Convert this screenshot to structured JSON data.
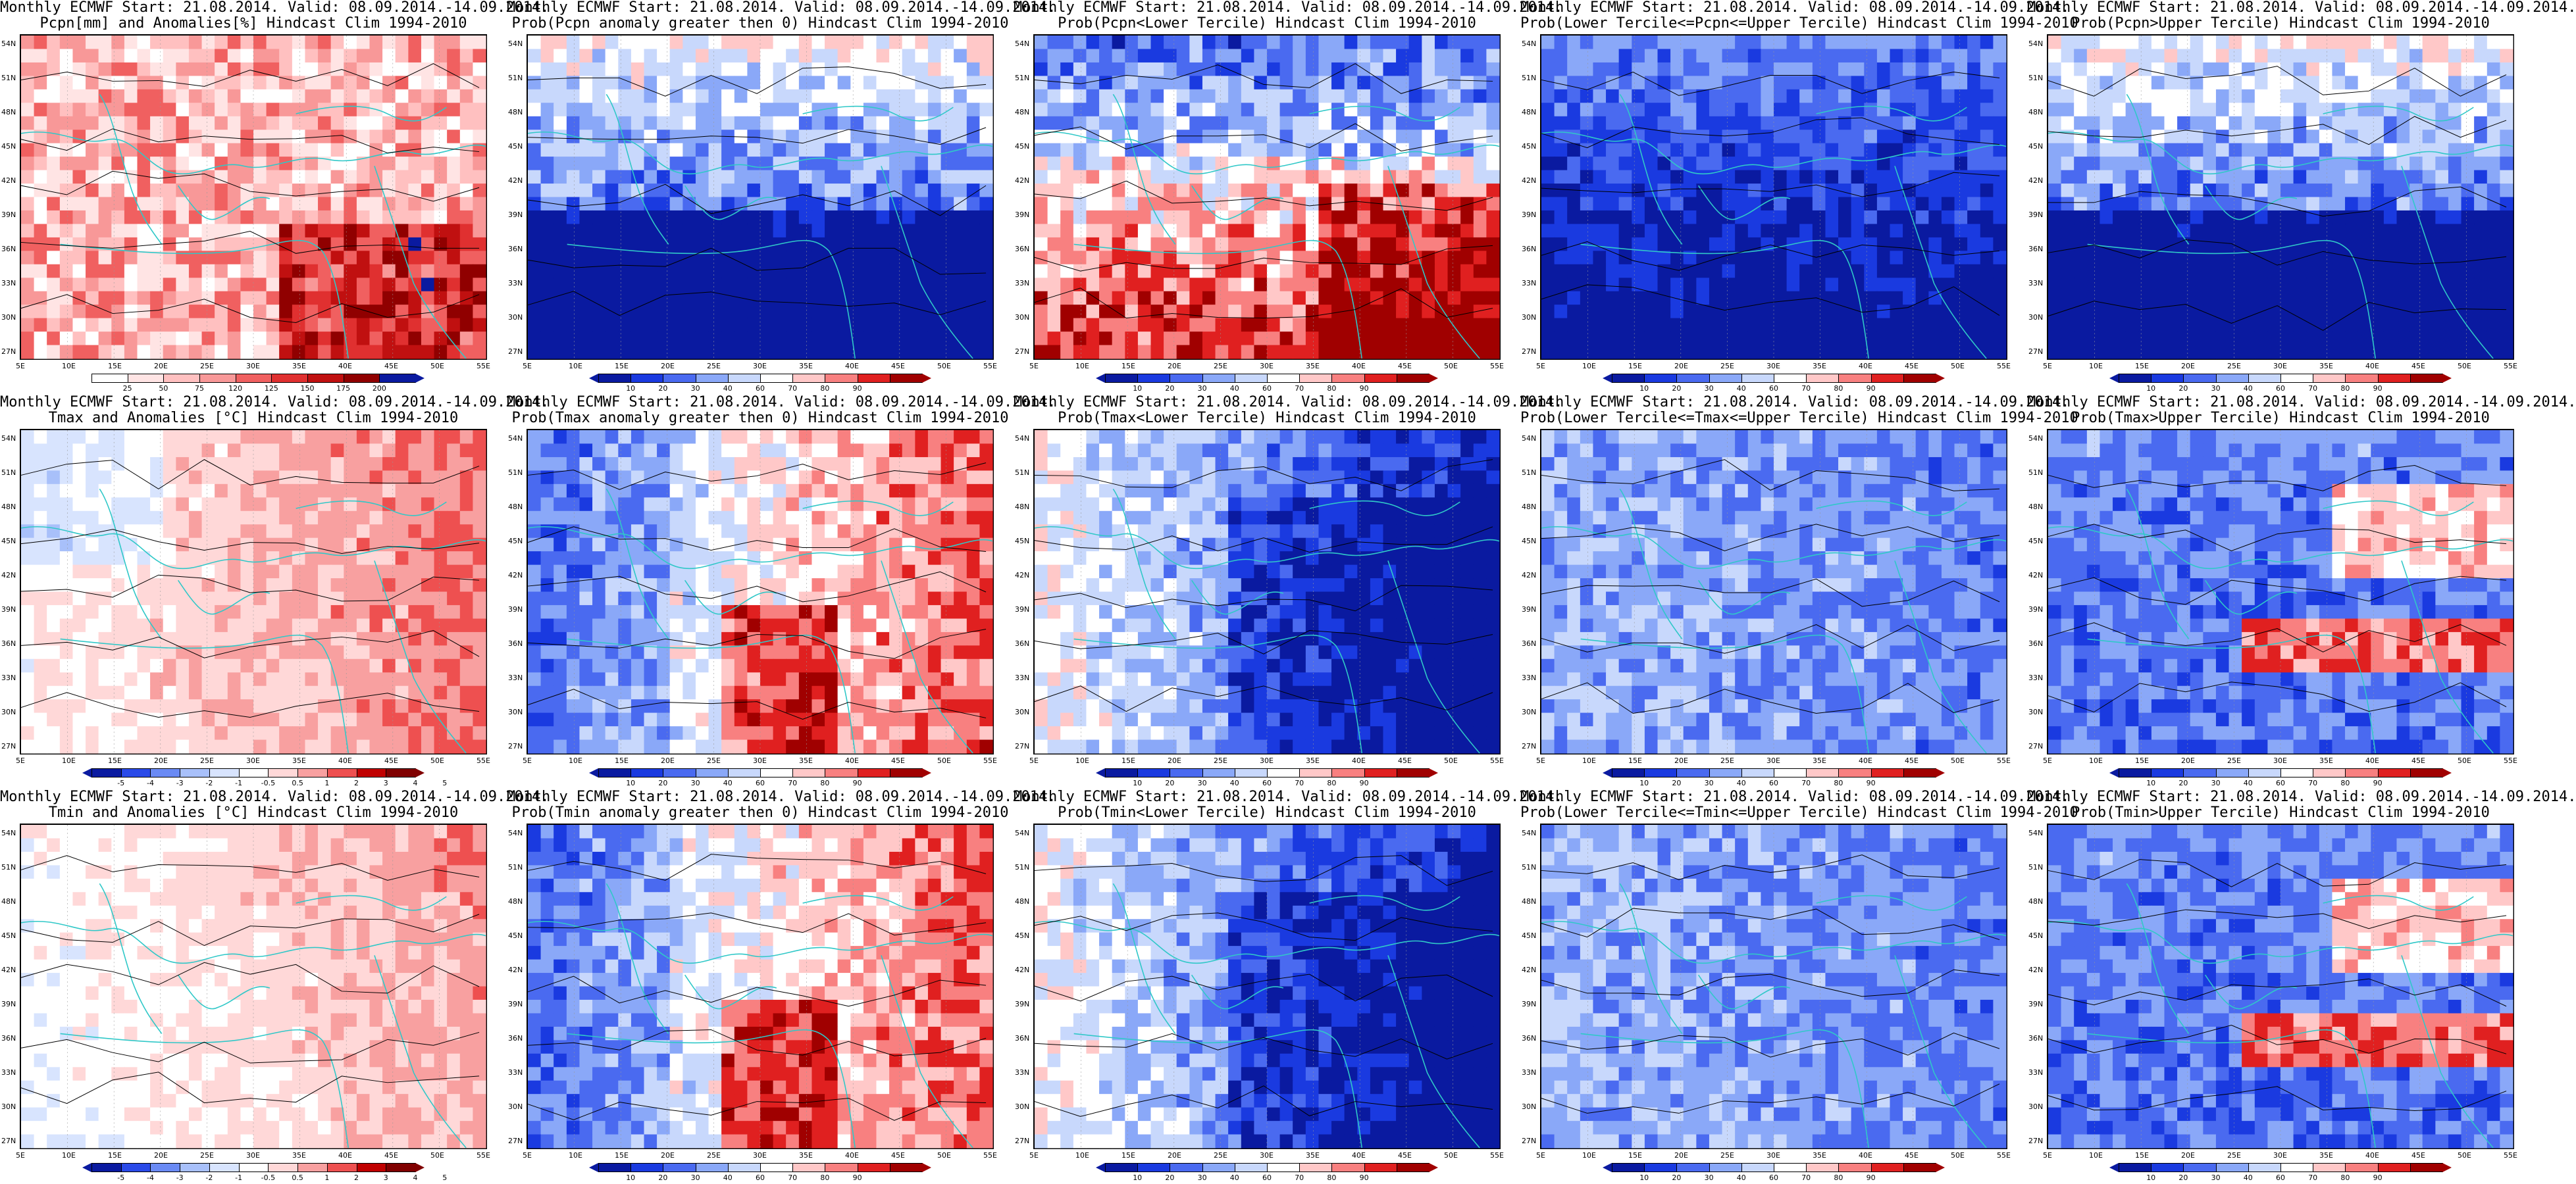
{
  "colors": {
    "prob_scale": [
      "#0a1aa0",
      "#1a3ae0",
      "#4a6af0",
      "#8aa8f8",
      "#c8d8fc",
      "#ffffff",
      "#ffc8c8",
      "#f88080",
      "#e02020",
      "#a00000"
    ],
    "anom_scale": [
      "#0a1aa0",
      "#2a4ae8",
      "#6a8af4",
      "#a8c0fa",
      "#d8e4fe",
      "#ffffff",
      "#ffd8d8",
      "#f8a0a0",
      "#ee5050",
      "#c00000",
      "#800000"
    ],
    "pcpn_scale": [
      "#ffffff",
      "#ffe4e4",
      "#ffc0c0",
      "#f89898",
      "#f06060",
      "#e03030",
      "#c01010",
      "#900000",
      "#0a1aa0",
      "#3050e0"
    ],
    "coast": "#30c8c8",
    "contour": "#000000"
  },
  "yticks": [
    "54N",
    "51N",
    "48N",
    "45N",
    "42N",
    "39N",
    "36N",
    "33N",
    "30N",
    "27N"
  ],
  "xticks": [
    "5E",
    "10E",
    "15E",
    "20E",
    "25E",
    "30E",
    "35E",
    "40E",
    "45E",
    "50E",
    "55E"
  ],
  "prob_labels": [
    "10",
    "20",
    "30",
    "40",
    "60",
    "70",
    "80",
    "90"
  ],
  "anom_labels": [
    "-5",
    "-4",
    "-3",
    "-2",
    "-1",
    "-0.5",
    "0.5",
    "1",
    "2",
    "3",
    "4",
    "5"
  ],
  "pcpn_labels": [
    "25",
    "50",
    "75",
    "120",
    "125",
    "150",
    "175",
    "200"
  ],
  "panels": [
    {
      "line1": "Monthly ECMWF Start: 21.08.2014. Valid: 08.09.2014.-14.09.2014.",
      "line2": "Pcpn[mm] and Anomalies[%] Hindcast Clim 1994-2010",
      "scale": "pcpn",
      "mode": "pcpn"
    },
    {
      "line1": "Monthly ECMWF Start: 21.08.2014. Valid: 08.09.2014.-14.09.2014.",
      "line2": "Prob(Pcpn anomaly greater then 0) Hindcast Clim 1994-2010",
      "scale": "prob",
      "mode": "blue_south"
    },
    {
      "line1": "Monthly ECMWF Start: 21.08.2014. Valid: 08.09.2014.-14.09.2014.",
      "line2": "Prob(Pcpn<Lower Tercile) Hindcast Clim 1994-2010",
      "scale": "prob",
      "mode": "red_south"
    },
    {
      "line1": "Monthly ECMWF Start: 21.08.2014. Valid: 08.09.2014.-14.09.2014.",
      "line2": "Prob(Lower Tercile<=Pcpn<=Upper Tercile) Hindcast Clim 1994-2010",
      "scale": "prob",
      "mode": "deep_blue"
    },
    {
      "line1": "Monthly ECMWF Start: 21.08.2014. Valid: 08.09.2014.-14.09.2014.",
      "line2": "Prob(Pcpn>Upper Tercile) Hindcast Clim 1994-2010",
      "scale": "prob",
      "mode": "blue_south"
    },
    {
      "line1": "Monthly ECMWF Start: 21.08.2014. Valid: 08.09.2014.-14.09.2014.",
      "line2": "Tmax and Anomalies [°C] Hindcast Clim 1994-2010",
      "scale": "anom",
      "mode": "warm_east"
    },
    {
      "line1": "Monthly ECMWF Start: 21.08.2014. Valid: 08.09.2014.-14.09.2014.",
      "line2": "Prob(Tmax anomaly greater then 0) Hindcast Clim 1994-2010",
      "scale": "prob",
      "mode": "red_east"
    },
    {
      "line1": "Monthly ECMWF Start: 21.08.2014. Valid: 08.09.2014.-14.09.2014.",
      "line2": "Prob(Tmax<Lower Tercile) Hindcast Clim 1994-2010",
      "scale": "prob",
      "mode": "blue_east"
    },
    {
      "line1": "Monthly ECMWF Start: 21.08.2014. Valid: 08.09.2014.-14.09.2014.",
      "line2": "Prob(Lower Tercile<=Tmax<=Upper Tercile) Hindcast Clim 1994-2010",
      "scale": "prob",
      "mode": "light_blue"
    },
    {
      "line1": "Monthly ECMWF Start: 21.08.2014. Valid: 08.09.2014.-14.09.2014.",
      "line2": "Prob(Tmax>Upper Tercile) Hindcast Clim 1994-2010",
      "scale": "prob",
      "mode": "mixed"
    },
    {
      "line1": "Monthly ECMWF Start: 21.08.2014. Valid: 08.09.2014.-14.09.2014.",
      "line2": "Tmin and Anomalies [°C] Hindcast Clim 1994-2010",
      "scale": "anom",
      "mode": "warm_east_light"
    },
    {
      "line1": "Monthly ECMWF Start: 21.08.2014. Valid: 08.09.2014.-14.09.2014.",
      "line2": "Prob(Tmin anomaly greater then 0) Hindcast Clim 1994-2010",
      "scale": "prob",
      "mode": "red_east"
    },
    {
      "line1": "Monthly ECMWF Start: 21.08.2014. Valid: 08.09.2014.-14.09.2014.",
      "line2": "Prob(Tmin<Lower Tercile) Hindcast Clim 1994-2010",
      "scale": "prob",
      "mode": "blue_east"
    },
    {
      "line1": "Monthly ECMWF Start: 21.08.2014. Valid: 08.09.2014.-14.09.2014.",
      "line2": "Prob(Lower Tercile<=Tmin<=Upper Tercile) Hindcast Clim 1994-2010",
      "scale": "prob",
      "mode": "light_blue"
    },
    {
      "line1": "Monthly ECMWF Start: 21.08.2014. Valid: 08.09.2014.-14.09.2014.",
      "line2": "Prob(Tmin>Upper Tercile) Hindcast Clim 1994-2010",
      "scale": "prob",
      "mode": "mixed"
    }
  ]
}
